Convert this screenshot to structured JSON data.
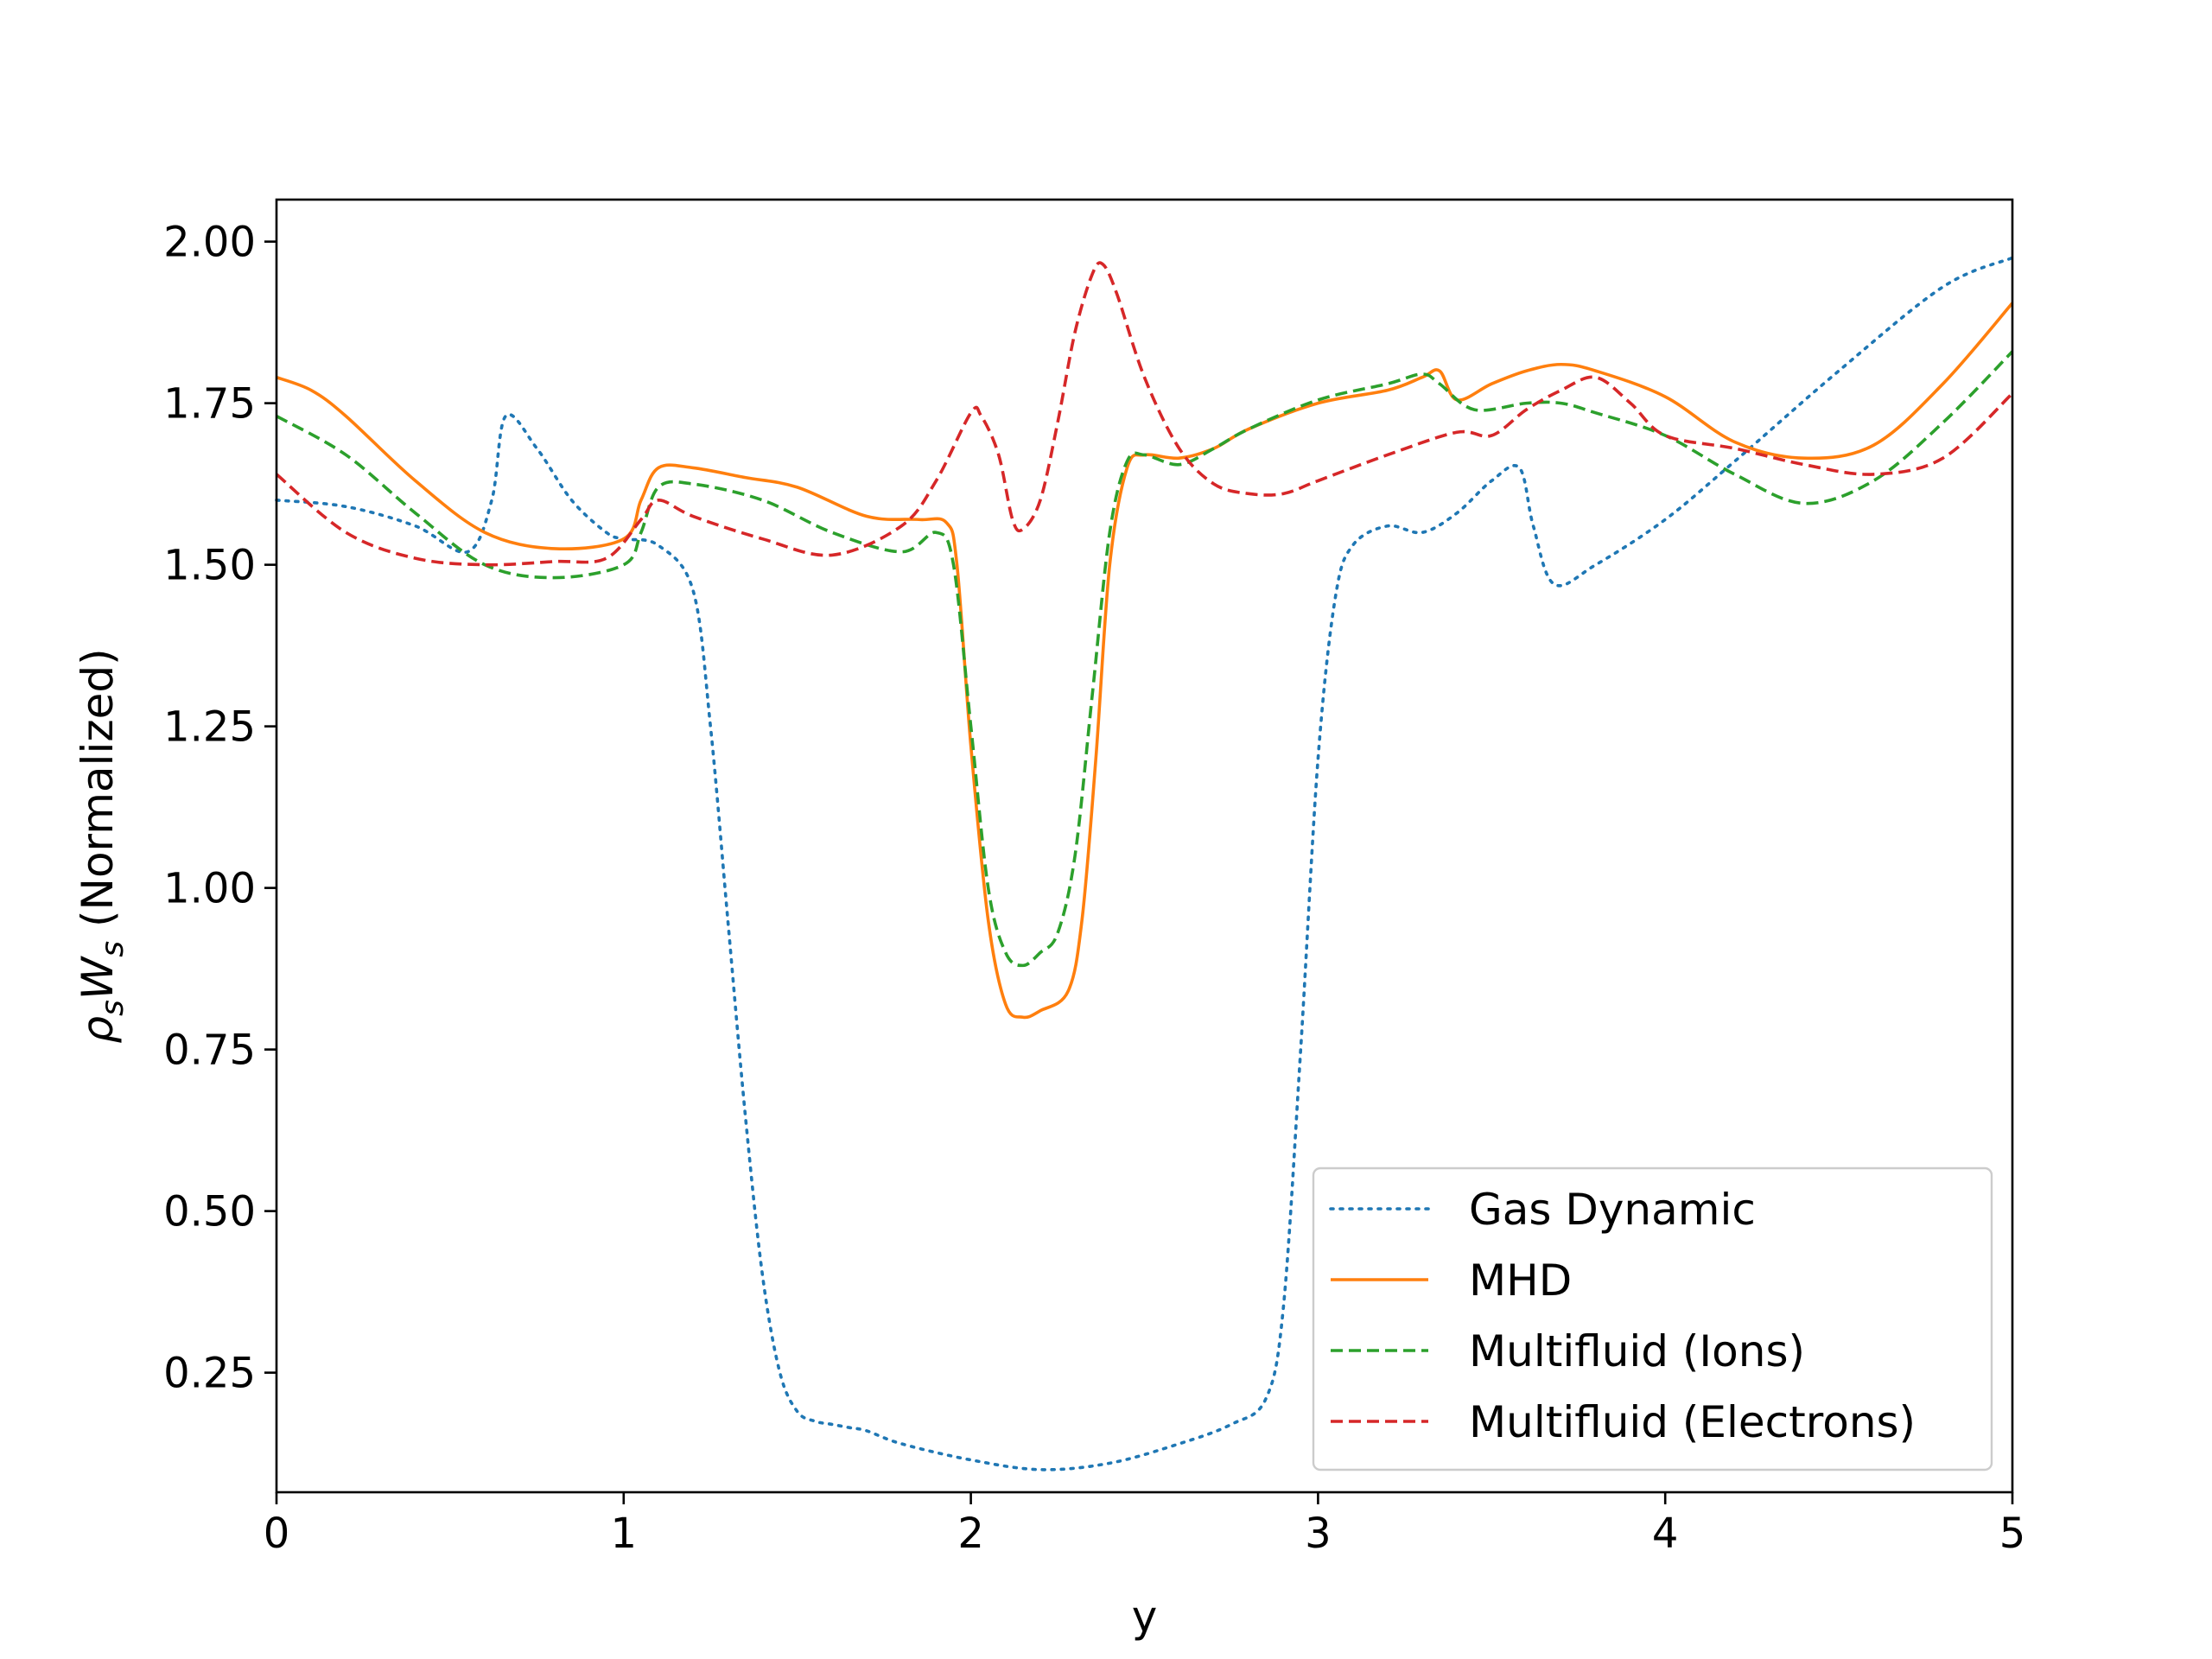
{
  "chart_data": {
    "type": "line",
    "title": "",
    "xlabel": "y",
    "ylabel_main": "ρ",
    "ylabel_sub1": "s",
    "ylabel_mid": "W",
    "ylabel_sub2": "s",
    "ylabel_rest": " (Normalized)",
    "xlim": [
      0,
      5
    ],
    "ylim": [
      0.065,
      2.065
    ],
    "xticks": [
      0,
      1,
      2,
      3,
      4,
      5
    ],
    "xtick_labels": [
      "0",
      "1",
      "2",
      "3",
      "4",
      "5"
    ],
    "yticks": [
      0.25,
      0.5,
      0.75,
      1.0,
      1.25,
      1.5,
      1.75,
      2.0
    ],
    "ytick_labels": [
      "0.25",
      "0.50",
      "0.75",
      "1.00",
      "1.25",
      "1.50",
      "1.75",
      "2.00"
    ],
    "grid": false,
    "legend_position": "lower-right",
    "series": [
      {
        "name": "Gas Dynamic",
        "color": "#1f77b4",
        "style": "dotted",
        "x": [
          0,
          0.2,
          0.4,
          0.55,
          0.62,
          0.66,
          0.75,
          0.85,
          0.95,
          1.0,
          1.1,
          1.2,
          1.25,
          1.3,
          1.35,
          1.4,
          1.45,
          1.5,
          1.55,
          1.6,
          1.65,
          1.7,
          1.8,
          2.0,
          2.2,
          2.4,
          2.6,
          2.75,
          2.85,
          2.9,
          2.95,
          3.0,
          3.05,
          3.1,
          3.2,
          3.3,
          3.4,
          3.5,
          3.58,
          3.62,
          3.68,
          3.8,
          4.0,
          4.2,
          4.5,
          4.8,
          5.0
        ],
        "y": [
          1.6,
          1.59,
          1.56,
          1.52,
          1.6,
          1.73,
          1.68,
          1.6,
          1.55,
          1.54,
          1.53,
          1.46,
          1.25,
          0.95,
          0.65,
          0.4,
          0.25,
          0.19,
          0.175,
          0.17,
          0.165,
          0.16,
          0.14,
          0.115,
          0.1,
          0.11,
          0.14,
          0.17,
          0.21,
          0.35,
          0.75,
          1.2,
          1.45,
          1.53,
          1.56,
          1.55,
          1.58,
          1.63,
          1.65,
          1.56,
          1.47,
          1.5,
          1.57,
          1.66,
          1.8,
          1.93,
          1.975
        ]
      },
      {
        "name": "MHD",
        "color": "#ff7f0e",
        "style": "solid",
        "x": [
          0,
          0.1,
          0.2,
          0.4,
          0.6,
          0.8,
          1.0,
          1.05,
          1.1,
          1.2,
          1.35,
          1.5,
          1.7,
          1.85,
          1.93,
          1.96,
          2.0,
          2.05,
          2.1,
          2.15,
          2.2,
          2.28,
          2.32,
          2.36,
          2.4,
          2.45,
          2.5,
          2.6,
          2.7,
          2.8,
          3.0,
          3.2,
          3.3,
          3.35,
          3.4,
          3.5,
          3.6,
          3.7,
          3.8,
          4.0,
          4.2,
          4.4,
          4.6,
          4.8,
          5.0
        ],
        "y": [
          1.79,
          1.77,
          1.73,
          1.63,
          1.55,
          1.525,
          1.54,
          1.6,
          1.65,
          1.65,
          1.635,
          1.62,
          1.575,
          1.57,
          1.565,
          1.5,
          1.22,
          0.95,
          0.82,
          0.8,
          0.81,
          0.84,
          0.95,
          1.2,
          1.5,
          1.65,
          1.67,
          1.665,
          1.68,
          1.71,
          1.75,
          1.77,
          1.79,
          1.8,
          1.755,
          1.78,
          1.8,
          1.81,
          1.8,
          1.76,
          1.69,
          1.665,
          1.685,
          1.78,
          1.905
        ]
      },
      {
        "name": "Multifluid (Ions)",
        "color": "#2ca02c",
        "style": "dashed",
        "x": [
          0,
          0.2,
          0.4,
          0.6,
          0.8,
          1.0,
          1.05,
          1.1,
          1.2,
          1.4,
          1.6,
          1.8,
          1.9,
          1.95,
          2.0,
          2.05,
          2.1,
          2.15,
          2.2,
          2.25,
          2.3,
          2.35,
          2.4,
          2.45,
          2.5,
          2.6,
          2.7,
          2.8,
          3.0,
          3.2,
          3.3,
          3.35,
          3.45,
          3.6,
          3.7,
          3.8,
          4.0,
          4.2,
          4.4,
          4.6,
          4.8,
          5.0
        ],
        "y": [
          1.73,
          1.67,
          1.58,
          1.5,
          1.48,
          1.5,
          1.55,
          1.62,
          1.625,
          1.6,
          1.55,
          1.52,
          1.55,
          1.5,
          1.25,
          1.0,
          0.9,
          0.88,
          0.9,
          0.93,
          1.05,
          1.3,
          1.55,
          1.66,
          1.67,
          1.655,
          1.68,
          1.71,
          1.755,
          1.78,
          1.795,
          1.78,
          1.74,
          1.75,
          1.75,
          1.735,
          1.7,
          1.64,
          1.595,
          1.63,
          1.72,
          1.83
        ]
      },
      {
        "name": "Multifluid (Electrons)",
        "color": "#d62728",
        "style": "dashed",
        "x": [
          0,
          0.2,
          0.4,
          0.6,
          0.8,
          0.95,
          1.05,
          1.1,
          1.2,
          1.4,
          1.6,
          1.8,
          1.9,
          2.0,
          2.03,
          2.08,
          2.12,
          2.15,
          2.2,
          2.25,
          2.3,
          2.35,
          2.38,
          2.42,
          2.5,
          2.6,
          2.7,
          2.8,
          2.9,
          3.0,
          3.2,
          3.4,
          3.5,
          3.6,
          3.7,
          3.8,
          3.9,
          4.0,
          4.2,
          4.4,
          4.6,
          4.8,
          5.0
        ],
        "y": [
          1.64,
          1.55,
          1.51,
          1.5,
          1.505,
          1.51,
          1.57,
          1.6,
          1.575,
          1.54,
          1.515,
          1.56,
          1.63,
          1.735,
          1.73,
          1.67,
          1.57,
          1.555,
          1.6,
          1.72,
          1.86,
          1.95,
          1.965,
          1.92,
          1.79,
          1.68,
          1.625,
          1.61,
          1.61,
          1.63,
          1.67,
          1.705,
          1.7,
          1.74,
          1.77,
          1.79,
          1.75,
          1.7,
          1.68,
          1.655,
          1.64,
          1.665,
          1.765
        ]
      }
    ]
  }
}
